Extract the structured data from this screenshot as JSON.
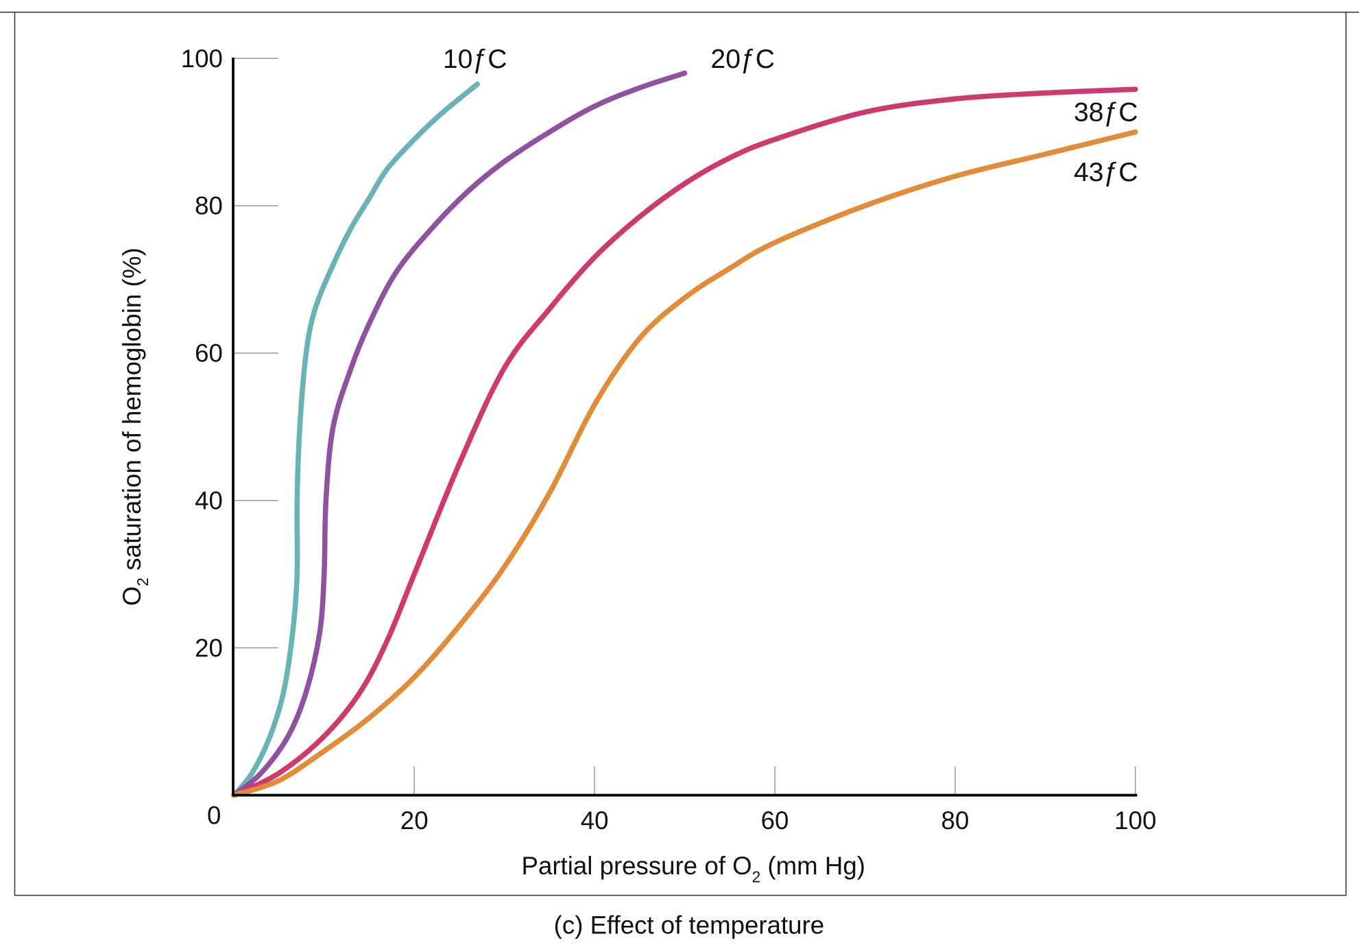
{
  "chart_data": {
    "type": "line",
    "caption": "(c) Effect of temperature",
    "xlabel_main": "Partial pressure of O",
    "xlabel_sub": "2",
    "xlabel_tail": " (mm Hg)",
    "ylabel_main": "O",
    "ylabel_sub": "2",
    "ylabel_tail": " saturation of hemoglobin (%)",
    "xlim": [
      0,
      100
    ],
    "ylim": [
      0,
      100
    ],
    "origin_label": "0",
    "x_ticks": [
      {
        "v": 20,
        "label": "20"
      },
      {
        "v": 40,
        "label": "40"
      },
      {
        "v": 60,
        "label": "60"
      },
      {
        "v": 80,
        "label": "80"
      },
      {
        "v": 100,
        "label": "100"
      }
    ],
    "y_ticks": [
      {
        "v": 20,
        "label": "20"
      },
      {
        "v": 40,
        "label": "40"
      },
      {
        "v": 60,
        "label": "60"
      },
      {
        "v": 80,
        "label": "80"
      },
      {
        "v": 100,
        "label": "100"
      }
    ],
    "grid": false,
    "series": [
      {
        "name": "10ƒC",
        "color": "#6ab3b5",
        "points": [
          [
            0,
            0
          ],
          [
            2,
            3
          ],
          [
            4,
            8
          ],
          [
            5.5,
            14
          ],
          [
            6.5,
            22
          ],
          [
            7,
            30
          ],
          [
            7,
            40
          ],
          [
            7.3,
            50
          ],
          [
            8,
            60
          ],
          [
            9,
            66
          ],
          [
            11,
            72
          ],
          [
            13,
            77
          ],
          [
            15,
            81
          ],
          [
            17,
            85
          ],
          [
            20,
            89
          ],
          [
            23,
            92.5
          ],
          [
            27,
            96.5
          ]
        ]
      },
      {
        "name": "20ƒC",
        "color": "#8e52a0",
        "points": [
          [
            0,
            0
          ],
          [
            3,
            3
          ],
          [
            6,
            8
          ],
          [
            8,
            14
          ],
          [
            9.5,
            22
          ],
          [
            10,
            30
          ],
          [
            10.2,
            40
          ],
          [
            11,
            50
          ],
          [
            13,
            58
          ],
          [
            15,
            64
          ],
          [
            18,
            71
          ],
          [
            22,
            77
          ],
          [
            26,
            82
          ],
          [
            30,
            86
          ],
          [
            35,
            90
          ],
          [
            40,
            93.5
          ],
          [
            45,
            96
          ],
          [
            50,
            98
          ]
        ]
      },
      {
        "name": "38ƒC",
        "color": "#cc3a6e",
        "points": [
          [
            0,
            0
          ],
          [
            5,
            3
          ],
          [
            10,
            8
          ],
          [
            14,
            14
          ],
          [
            17,
            21
          ],
          [
            20,
            30
          ],
          [
            25,
            45
          ],
          [
            30,
            58
          ],
          [
            35,
            66
          ],
          [
            40,
            73
          ],
          [
            45,
            78.5
          ],
          [
            50,
            83
          ],
          [
            55,
            86.5
          ],
          [
            60,
            89
          ],
          [
            70,
            92.7
          ],
          [
            80,
            94.5
          ],
          [
            90,
            95.3
          ],
          [
            100,
            95.8
          ]
        ]
      },
      {
        "name": "43ƒC",
        "color": "#e08c3a",
        "points": [
          [
            0,
            0
          ],
          [
            5,
            2
          ],
          [
            10,
            6
          ],
          [
            15,
            10.5
          ],
          [
            20,
            16
          ],
          [
            25,
            23
          ],
          [
            30,
            31
          ],
          [
            35,
            41
          ],
          [
            40,
            53
          ],
          [
            45,
            62
          ],
          [
            50,
            67.5
          ],
          [
            55,
            71.5
          ],
          [
            60,
            75
          ],
          [
            70,
            80
          ],
          [
            80,
            84
          ],
          [
            90,
            87
          ],
          [
            100,
            90
          ]
        ]
      }
    ]
  }
}
